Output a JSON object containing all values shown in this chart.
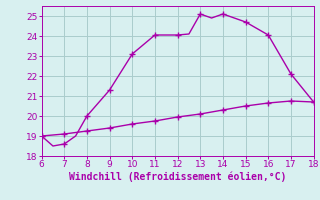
{
  "xlabel": "Windchill (Refroidissement éolien,°C)",
  "xlim": [
    6,
    18
  ],
  "ylim": [
    18,
    25.5
  ],
  "xticks": [
    6,
    7,
    8,
    9,
    10,
    11,
    12,
    13,
    14,
    15,
    16,
    17,
    18
  ],
  "yticks": [
    18,
    19,
    20,
    21,
    22,
    23,
    24,
    25
  ],
  "line1_x": [
    6,
    6.5,
    7,
    7.5,
    8,
    9,
    10,
    11,
    12,
    12.5,
    13,
    13.5,
    14,
    15,
    16,
    17,
    18
  ],
  "line1_y": [
    19.0,
    18.5,
    18.6,
    19.0,
    20.0,
    21.3,
    23.1,
    24.05,
    24.05,
    24.1,
    25.1,
    24.9,
    25.1,
    24.7,
    24.05,
    22.1,
    20.7
  ],
  "line1_marker_x": [
    6,
    7,
    8,
    9,
    10,
    11,
    12,
    13,
    14,
    15,
    16,
    17,
    18
  ],
  "line1_marker_y": [
    19.0,
    18.6,
    20.0,
    21.3,
    23.1,
    24.05,
    24.05,
    25.1,
    25.1,
    24.7,
    24.05,
    22.1,
    20.7
  ],
  "line2_x": [
    6,
    7,
    8,
    9,
    10,
    11,
    12,
    13,
    14,
    15,
    16,
    17,
    18
  ],
  "line2_y": [
    19.0,
    19.1,
    19.25,
    19.4,
    19.6,
    19.75,
    19.95,
    20.1,
    20.3,
    20.5,
    20.65,
    20.75,
    20.7
  ],
  "line2_marker_x": [
    6,
    7,
    8,
    9,
    10,
    11,
    12,
    13,
    14,
    15,
    16,
    17,
    18
  ],
  "line2_marker_y": [
    19.0,
    19.1,
    19.25,
    19.4,
    19.6,
    19.75,
    19.95,
    20.1,
    20.3,
    20.5,
    20.65,
    20.75,
    20.7
  ],
  "line_color": "#aa00aa",
  "bg_color": "#d8f0f0",
  "grid_color": "#aacccc",
  "tick_color": "#aa00aa",
  "label_color": "#aa00aa",
  "marker": "+",
  "marker_size": 4,
  "linewidth": 1.0,
  "xlabel_fontsize": 7.0,
  "tick_fontsize": 6.5
}
